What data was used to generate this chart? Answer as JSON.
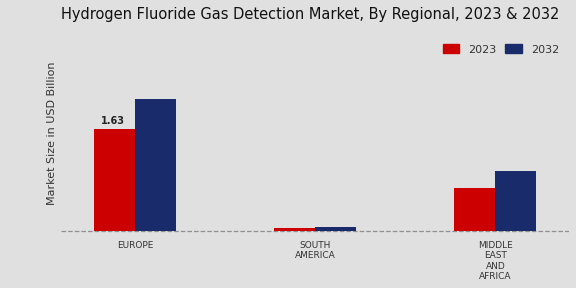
{
  "title": "Hydrogen Fluoride Gas Detection Market, By Regional, 2023 & 2032",
  "ylabel": "Market Size in USD Billion",
  "categories": [
    "EUROPE",
    "SOUTH\nAMERICA",
    "MIDDLE\nEAST\nAND\nAFRICA"
  ],
  "values_2023": [
    1.63,
    0.04,
    0.68
  ],
  "values_2032": [
    2.1,
    0.07,
    0.95
  ],
  "color_2023": "#cc0000",
  "color_2032": "#1a2b6b",
  "background_color": "#e0e0e0",
  "bar_width": 0.25,
  "annotation_2023": "1.63",
  "legend_labels": [
    "2023",
    "2032"
  ],
  "title_fontsize": 10.5,
  "axis_label_fontsize": 8,
  "tick_fontsize": 6.5,
  "ylim_max": 3.2,
  "x_positions": [
    0.0,
    1.1,
    2.2
  ]
}
